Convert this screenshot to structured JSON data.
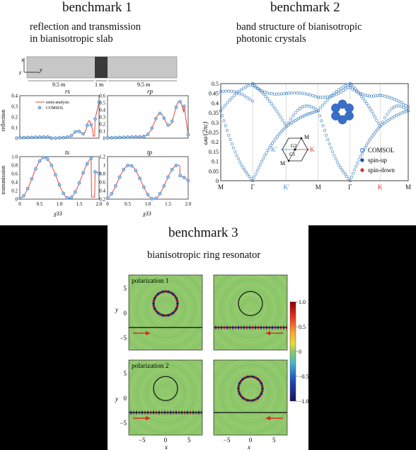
{
  "benchmark1": {
    "title": "benchmark 1",
    "subtitle_line1": "reflection and transmission",
    "subtitle_line2": "in bianisotropic slab",
    "slab": {
      "axis_x": "x",
      "axis_z": "z",
      "axis_y": "y",
      "len_left": "9.5 m",
      "len_mid": "1 m",
      "len_right": "9.5 m"
    },
    "ylabel_reflection": "reflection",
    "ylabel_transmission": "transmission",
    "xlabel": "χ33",
    "legend_semi": "semi-analysis",
    "legend_comsol": "COMSOL",
    "panels": {
      "rs": {
        "title": "rs",
        "yticks": [
          "0.4",
          "0.3",
          "0.2",
          "0.1",
          "0"
        ]
      },
      "rp": {
        "title": "rp",
        "yticks": [
          "0.6",
          "0.5",
          "0.4",
          "0.3",
          "0.2",
          "0.1",
          "0"
        ]
      },
      "ts": {
        "title": "ts",
        "yticks": [
          "1.0",
          "0.8",
          "0.6",
          "0.4",
          "0.2",
          "0"
        ]
      },
      "tp": {
        "title": "tp",
        "yticks": [
          "1.2",
          "1",
          "0.8",
          "0.6",
          "0.4",
          "0.2"
        ]
      }
    },
    "xticks": [
      "0",
      "0.5",
      "1.0",
      "1.5",
      "2.0"
    ],
    "colors": {
      "line": "#e8463a",
      "marker": "#3d7fc0"
    }
  },
  "benchmark2": {
    "title": "benchmark 2",
    "subtitle_line1": "band structure of bianisotropic",
    "subtitle_line2": "photonic crystals",
    "ylabel": "ωa/(2πc)",
    "yticks": [
      "0.5",
      "0.45",
      "0.4",
      "0.35",
      "0.3",
      "0.25",
      "0.2",
      "0.15",
      "0.1",
      "0.05",
      "0"
    ],
    "xticks": [
      {
        "label": "M",
        "color": "#111111"
      },
      {
        "label": "Γ",
        "color": "#111111"
      },
      {
        "label": "K′",
        "color": "#3d8bd6"
      },
      {
        "label": "M",
        "color": "#111111"
      },
      {
        "label": "Γ",
        "color": "#111111"
      },
      {
        "label": "K",
        "color": "#d83030"
      },
      {
        "label": "M",
        "color": "#111111"
      }
    ],
    "legend": {
      "comsol": "COMSOL",
      "spin_up": "spin-up",
      "spin_down": "spin-down"
    },
    "bz": {
      "G2": "G2",
      "G1": "G1",
      "M_top": "M",
      "M_bottom": "M",
      "K": "K",
      "K_prime": "K′"
    },
    "colors": {
      "band": "#3d7fc0",
      "spin_up": "#1f4fa8",
      "spin_down": "#d83030"
    }
  },
  "benchmark3": {
    "title": "benchmark 3",
    "subtitle": "bianisotropic ring resonator",
    "polarization1": "polarization 1",
    "polarization2": "polarization 2",
    "ylabel": "y",
    "xlabel": "x",
    "yticks": [
      "5",
      "0",
      "−5"
    ],
    "xticks": [
      "−5",
      "0",
      "5"
    ],
    "colorbar_ticks": [
      "1.0",
      "0.5",
      "0",
      "−0.5",
      "−1.0"
    ],
    "colors": {
      "field_bg": "#8ec86a",
      "arrow": "#e02020"
    }
  }
}
